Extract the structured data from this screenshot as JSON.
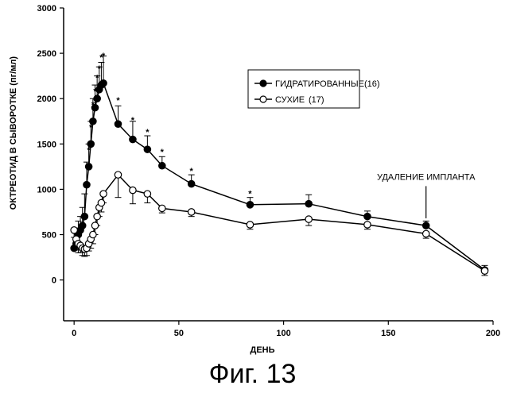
{
  "chart_data": {
    "type": "line",
    "title": "",
    "xlabel": "ДЕНЬ",
    "ylabel": "ОКТРЕОТИД В СЫВОРОТКЕ (пг/мл)",
    "xlim": [
      -5,
      200
    ],
    "ylim": [
      -450,
      3000
    ],
    "x_ticks": [
      0,
      50,
      100,
      150,
      200
    ],
    "y_ticks": [
      0,
      500,
      1000,
      1500,
      2000,
      2500,
      3000
    ],
    "grid": false,
    "legend_position": "upper-right-center",
    "series": [
      {
        "name": "ГИДРАТИРОВАННЫЕ(16)",
        "marker": "filled-circle",
        "color": "#000000",
        "x": [
          0,
          1,
          2,
          3,
          4,
          5,
          6,
          7,
          8,
          9,
          10,
          11,
          12,
          13,
          14,
          21,
          28,
          35,
          42,
          56,
          84,
          112,
          140,
          168,
          196
        ],
        "y": [
          350,
          400,
          500,
          550,
          600,
          700,
          1050,
          1250,
          1500,
          1750,
          1900,
          2000,
          2100,
          2150,
          2170,
          1720,
          1550,
          1440,
          1260,
          1060,
          830,
          840,
          700,
          600,
          110
        ],
        "err": [
          120,
          150,
          150,
          150,
          200,
          250,
          250,
          250,
          250,
          250,
          250,
          250,
          250,
          250,
          300,
          200,
          200,
          150,
          100,
          100,
          80,
          100,
          60,
          50,
          50
        ]
      },
      {
        "name": "СУХИЕ",
        "count_label": "(17)",
        "marker": "open-circle",
        "color": "#000000",
        "x": [
          0,
          1,
          2,
          3,
          4,
          5,
          6,
          7,
          8,
          9,
          10,
          11,
          12,
          13,
          14,
          21,
          28,
          35,
          42,
          56,
          84,
          112,
          140,
          168,
          196
        ],
        "y": [
          550,
          450,
          400,
          380,
          350,
          340,
          350,
          400,
          450,
          500,
          600,
          700,
          800,
          850,
          950,
          1160,
          990,
          950,
          790,
          750,
          610,
          670,
          610,
          510,
          100
        ],
        "err": [
          200,
          120,
          100,
          80,
          80,
          80,
          80,
          80,
          100,
          100,
          100,
          100,
          100,
          100,
          100,
          250,
          150,
          100,
          50,
          50,
          50,
          70,
          50,
          50,
          50
        ]
      }
    ],
    "stars": [
      {
        "x": 7,
        "y": 1400
      },
      {
        "x": 8,
        "y": 1650
      },
      {
        "x": 9,
        "y": 1900
      },
      {
        "x": 10,
        "y": 2050
      },
      {
        "x": 11,
        "y": 2200
      },
      {
        "x": 12,
        "y": 2300
      },
      {
        "x": 13,
        "y": 2420
      },
      {
        "x": 14,
        "y": 2440
      },
      {
        "x": 21,
        "y": 1950
      },
      {
        "x": 28,
        "y": 1730
      },
      {
        "x": 35,
        "y": 1600
      },
      {
        "x": 42,
        "y": 1380
      },
      {
        "x": 56,
        "y": 1170
      },
      {
        "x": 84,
        "y": 920
      }
    ],
    "annotation": {
      "text": "УДАЛЕНИЕ ИМПЛАНТА",
      "x": 168,
      "y": 1000
    }
  },
  "caption": "Фиг. 13"
}
